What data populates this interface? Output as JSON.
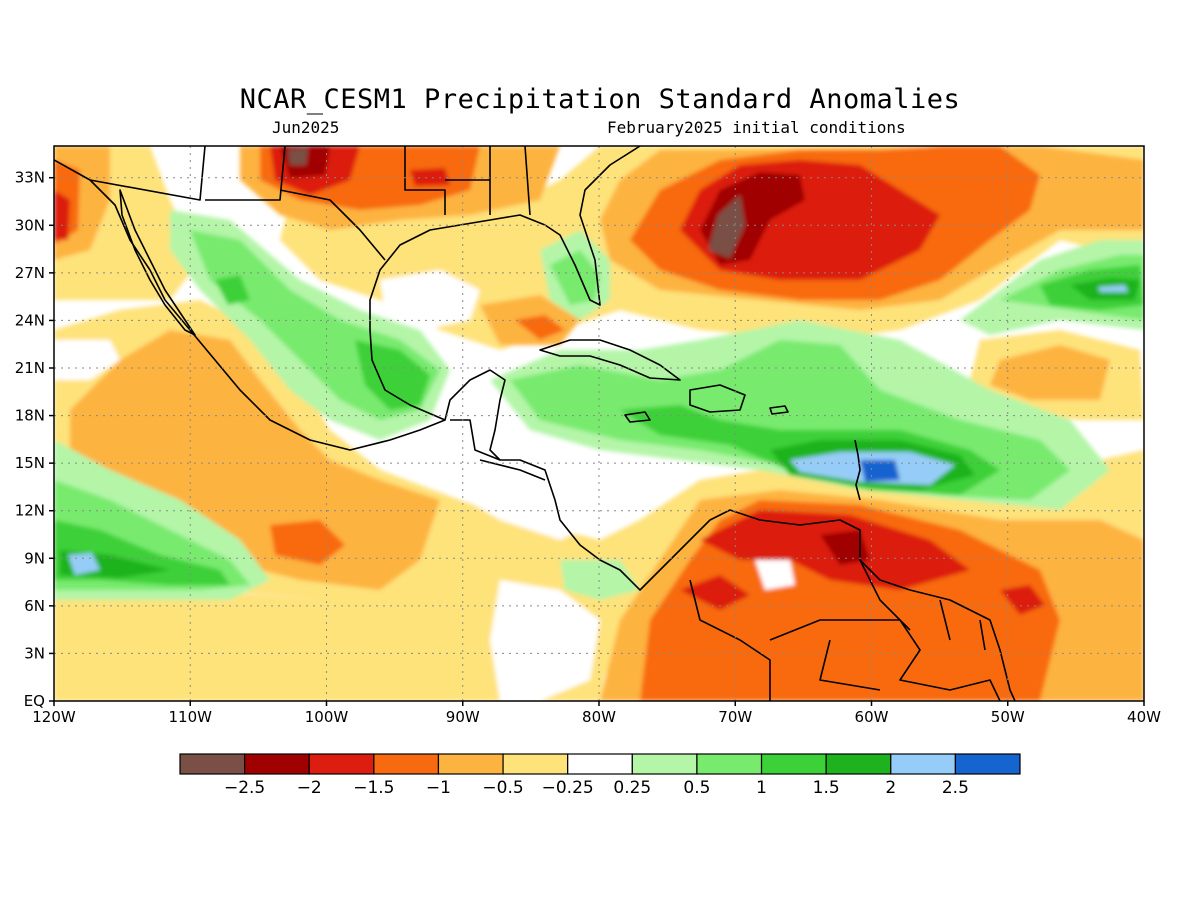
{
  "title": "NCAR_CESM1 Precipitation Standard Anomalies",
  "subtitle_left": "Jun2025",
  "subtitle_right": "February2025 initial conditions",
  "map": {
    "lon_range": [
      -120,
      -40
    ],
    "lat_range": [
      0,
      35
    ],
    "x_ticks": [
      {
        "lon": -120,
        "label": "120W"
      },
      {
        "lon": -110,
        "label": "110W"
      },
      {
        "lon": -100,
        "label": "100W"
      },
      {
        "lon": -90,
        "label": "90W"
      },
      {
        "lon": -80,
        "label": "80W"
      },
      {
        "lon": -70,
        "label": "70W"
      },
      {
        "lon": -60,
        "label": "60W"
      },
      {
        "lon": -50,
        "label": "50W"
      },
      {
        "lon": -40,
        "label": "40W"
      }
    ],
    "y_ticks": [
      {
        "lat": 0,
        "label": "EQ"
      },
      {
        "lat": 3,
        "label": "3N"
      },
      {
        "lat": 6,
        "label": "6N"
      },
      {
        "lat": 9,
        "label": "9N"
      },
      {
        "lat": 12,
        "label": "12N"
      },
      {
        "lat": 15,
        "label": "15N"
      },
      {
        "lat": 18,
        "label": "18N"
      },
      {
        "lat": 21,
        "label": "21N"
      },
      {
        "lat": 24,
        "label": "24N"
      },
      {
        "lat": 27,
        "label": "27N"
      },
      {
        "lat": 30,
        "label": "30N"
      },
      {
        "lat": 33,
        "label": "33N"
      }
    ],
    "grid": true
  },
  "legend": {
    "colors": [
      "#7a4f45",
      "#a00000",
      "#dc1d10",
      "#f86a10",
      "#fdb340",
      "#fee27a",
      "#ffffff",
      "#b4f5a8",
      "#78ea6e",
      "#3cd039",
      "#1eb31e",
      "#96cdf8",
      "#1664d0"
    ],
    "labels": [
      "−2.5",
      "−2",
      "−1.5",
      "−1",
      "−0.5",
      "−0.25",
      "0.25",
      "0.5",
      "1",
      "1.5",
      "2",
      "2.5"
    ]
  },
  "anomaly_regions": [
    {
      "level": -2.5,
      "lon": -71,
      "lat": 29.5
    },
    {
      "level": -2.5,
      "lon": -102,
      "lat": 34
    },
    {
      "level": -2,
      "lon": -70,
      "lat": 29.5
    },
    {
      "level": -1.5,
      "lon": -62,
      "lat": 9
    },
    {
      "level": -1,
      "lon": -70,
      "lat": 7
    },
    {
      "level": 2,
      "lon": -60,
      "lat": 14.5
    },
    {
      "level": 2,
      "lon": -117,
      "lat": 8.8
    },
    {
      "level": 1.5,
      "lon": -44,
      "lat": 26
    },
    {
      "level": 1.5,
      "lon": -94,
      "lat": 20.5
    },
    {
      "level": 1,
      "lon": -73,
      "lat": 18
    }
  ]
}
